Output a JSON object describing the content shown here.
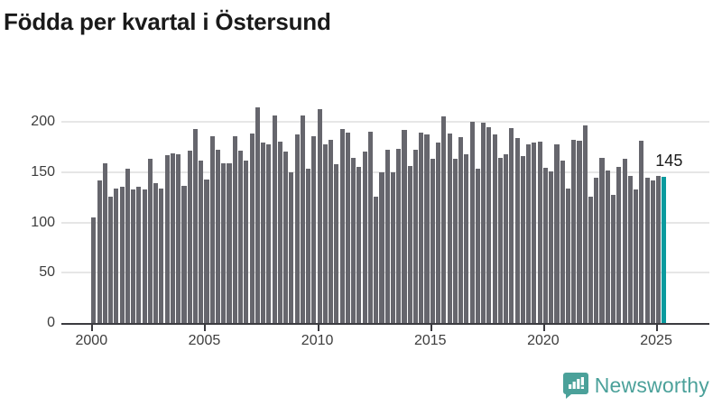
{
  "title": "Födda per kvartal i Östersund",
  "chart_data": {
    "type": "bar",
    "x_start": "2000-Q1",
    "x_end": "2025-Q2",
    "frequency": "quarterly",
    "values": [
      105,
      142,
      159,
      126,
      134,
      135,
      153,
      133,
      135,
      133,
      163,
      139,
      134,
      167,
      169,
      168,
      136,
      171,
      193,
      161,
      143,
      186,
      172,
      159,
      159,
      186,
      171,
      161,
      188,
      214,
      179,
      178,
      206,
      180,
      170,
      150,
      187,
      206,
      153,
      186,
      213,
      178,
      182,
      158,
      193,
      189,
      164,
      155,
      170,
      190,
      126,
      150,
      172,
      150,
      173,
      192,
      156,
      172,
      189,
      187,
      163,
      179,
      205,
      188,
      163,
      185,
      168,
      200,
      153,
      199,
      195,
      187,
      164,
      168,
      194,
      184,
      166,
      178,
      179,
      180,
      154,
      151,
      178,
      161,
      134,
      182,
      181,
      196,
      126,
      144,
      164,
      152,
      127,
      155,
      163,
      146,
      133,
      181,
      144,
      142,
      146,
      145
    ],
    "highlight": {
      "position": "last",
      "quarter": "2025-Q2",
      "value": 145,
      "label": "145"
    },
    "yticks": [
      0,
      50,
      100,
      150,
      200
    ],
    "xticks": [
      2000,
      2005,
      2010,
      2015,
      2020,
      2025
    ],
    "ylim": [
      0,
      220
    ],
    "grid": true,
    "legend": false,
    "bar_color": "#66666d",
    "highlight_color": "#0a9a9e",
    "gridline_color": "#e6e6e6",
    "axis_color": "#3b3b40"
  },
  "footer": {
    "brand": "Newsworthy",
    "logo_icon": "newsworthy-speech-bubble-bar-chart-icon",
    "brand_color": "#4ba19a"
  }
}
